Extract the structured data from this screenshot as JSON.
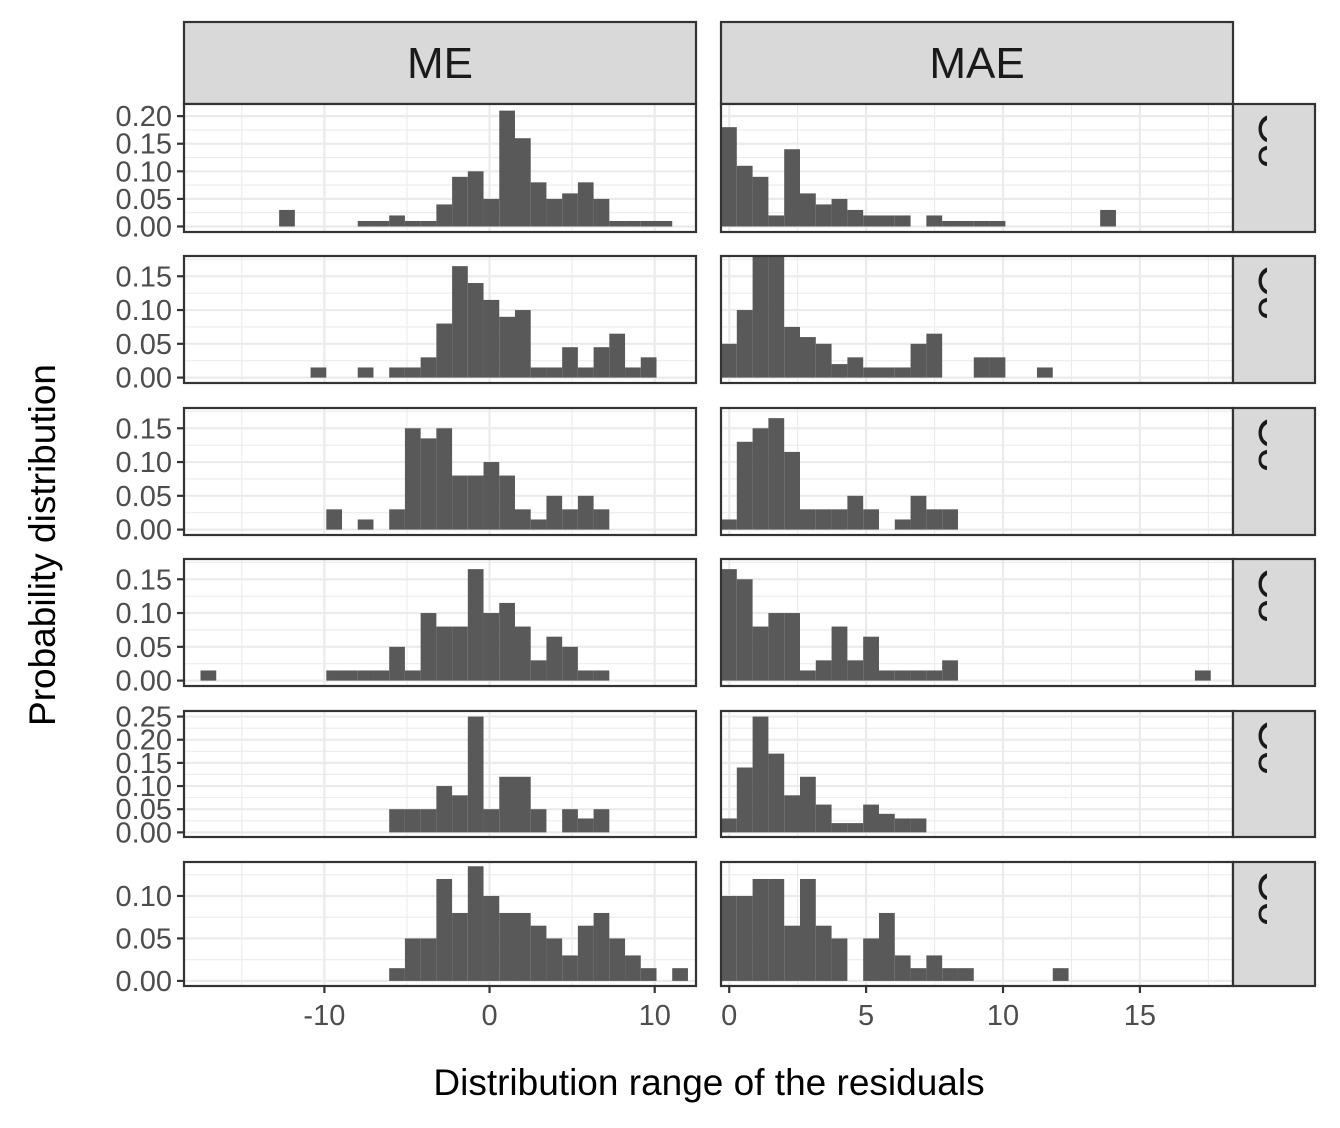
{
  "chart_data": {
    "type": "histogram-facet-grid",
    "xlabel": "Distribution range of the residuals",
    "ylabel": "Probability distribution",
    "columns": [
      {
        "label": "ME",
        "xlim": [
          -18.5,
          12.5
        ],
        "x_ticks": [
          -10,
          0,
          10
        ],
        "x_tick_labels": [
          "-10",
          "0",
          "10"
        ]
      },
      {
        "label": "MAE",
        "xlim": [
          -0.3,
          18.4
        ],
        "x_ticks": [
          0,
          5,
          10,
          15
        ],
        "x_tick_labels": [
          "0",
          "5",
          "10",
          "15"
        ]
      }
    ],
    "rows": [
      {
        "label": "Collec",
        "ylim": [
          -0.01,
          0.222
        ],
        "y_ticks": [
          0,
          0.05,
          0.1,
          0.15,
          0.2
        ],
        "y_tick_labels": [
          "0.00",
          "0.05",
          "0.10",
          "0.15",
          "0.20"
        ],
        "panels": [
          {
            "x0": -17.5,
            "width": 0.952,
            "values": [
              0,
              0,
              0,
              0,
              0,
              0.03,
              0,
              0,
              0,
              0,
              0.01,
              0.01,
              0.02,
              0.01,
              0.01,
              0.04,
              0.09,
              0.1,
              0.05,
              0.21,
              0.16,
              0.08,
              0.05,
              0.06,
              0.08,
              0.05,
              0.01,
              0.01,
              0.01,
              0.01
            ]
          },
          {
            "x0": -0.3,
            "width": 0.577,
            "values": [
              0.18,
              0.11,
              0.09,
              0.02,
              0.14,
              0.06,
              0.04,
              0.05,
              0.03,
              0.02,
              0.02,
              0.02,
              0,
              0.02,
              0.01,
              0.01,
              0.01,
              0.01,
              0,
              0,
              0,
              0,
              0,
              0,
              0.03
            ]
          }
        ]
      },
      {
        "label": "Collec",
        "ylim": [
          -0.008,
          0.18
        ],
        "y_ticks": [
          0,
          0.05,
          0.1,
          0.15
        ],
        "y_tick_labels": [
          "0.00",
          "0.05",
          "0.10",
          "0.15"
        ],
        "panels": [
          {
            "x0": -17.5,
            "width": 0.952,
            "values": [
              0,
              0,
              0,
              0,
              0,
              0,
              0,
              0.015,
              0,
              0,
              0.015,
              0,
              0.015,
              0.015,
              0.03,
              0.08,
              0.165,
              0.14,
              0.115,
              0.09,
              0.1,
              0.015,
              0.015,
              0.045,
              0.015,
              0.045,
              0.065,
              0.015,
              0.03
            ]
          },
          {
            "x0": -0.3,
            "width": 0.577,
            "values": [
              0.05,
              0.1,
              0.18,
              0.18,
              0.075,
              0.06,
              0.05,
              0.02,
              0.03,
              0.015,
              0.015,
              0.015,
              0.05,
              0.065,
              0,
              0,
              0.03,
              0.03,
              0,
              0,
              0.015
            ]
          }
        ]
      },
      {
        "label": "Collec",
        "ylim": [
          -0.008,
          0.18
        ],
        "y_ticks": [
          0,
          0.05,
          0.1,
          0.15
        ],
        "y_tick_labels": [
          "0.00",
          "0.05",
          "0.10",
          "0.15"
        ],
        "panels": [
          {
            "x0": -17.5,
            "width": 0.952,
            "values": [
              0,
              0,
              0,
              0,
              0,
              0,
              0,
              0,
              0.03,
              0,
              0.015,
              0,
              0.03,
              0.15,
              0.135,
              0.15,
              0.08,
              0.08,
              0.1,
              0.08,
              0.03,
              0.015,
              0.05,
              0.03,
              0.05,
              0.03
            ]
          },
          {
            "x0": -0.3,
            "width": 0.577,
            "values": [
              0.015,
              0.13,
              0.15,
              0.165,
              0.115,
              0.03,
              0.03,
              0.03,
              0.05,
              0.03,
              0,
              0.015,
              0.05,
              0.03,
              0.03
            ]
          }
        ]
      },
      {
        "label": "Collec",
        "ylim": [
          -0.008,
          0.18
        ],
        "y_ticks": [
          0,
          0.05,
          0.1,
          0.15
        ],
        "y_tick_labels": [
          "0.00",
          "0.05",
          "0.10",
          "0.15"
        ],
        "panels": [
          {
            "x0": -17.5,
            "width": 0.952,
            "values": [
              0.015,
              0,
              0,
              0,
              0,
              0,
              0,
              0,
              0.015,
              0.015,
              0.015,
              0.015,
              0.05,
              0.015,
              0.1,
              0.08,
              0.08,
              0.165,
              0.1,
              0.115,
              0.08,
              0.03,
              0.065,
              0.05,
              0.015,
              0.015
            ]
          },
          {
            "x0": -0.3,
            "width": 0.577,
            "values": [
              0.165,
              0.15,
              0.08,
              0.1,
              0.1,
              0.015,
              0.03,
              0.08,
              0.03,
              0.065,
              0.015,
              0.015,
              0.015,
              0.015,
              0.03,
              0,
              0,
              0,
              0,
              0,
              0,
              0,
              0,
              0,
              0,
              0,
              0,
              0,
              0,
              0,
              0.015
            ]
          }
        ]
      },
      {
        "label": "Collec",
        "ylim": [
          -0.01,
          0.262
        ],
        "y_ticks": [
          0,
          0.05,
          0.1,
          0.15,
          0.2,
          0.25
        ],
        "y_tick_labels": [
          "0.00",
          "0.05",
          "0.10",
          "0.15",
          "0.20",
          "0.25"
        ],
        "panels": [
          {
            "x0": -17.5,
            "width": 0.952,
            "values": [
              0,
              0,
              0,
              0,
              0,
              0,
              0,
              0,
              0,
              0,
              0,
              0,
              0.05,
              0.05,
              0.05,
              0.1,
              0.08,
              0.25,
              0.05,
              0.12,
              0.12,
              0.05,
              0,
              0.05,
              0.03,
              0.05
            ]
          },
          {
            "x0": -0.3,
            "width": 0.577,
            "values": [
              0.03,
              0.14,
              0.25,
              0.17,
              0.08,
              0.12,
              0.06,
              0.02,
              0.02,
              0.06,
              0.04,
              0.03,
              0.03
            ]
          }
        ]
      },
      {
        "label": "Collec",
        "ylim": [
          -0.006,
          0.14
        ],
        "y_ticks": [
          0,
          0.05,
          0.1
        ],
        "y_tick_labels": [
          "0.00",
          "0.05",
          "0.10"
        ],
        "panels": [
          {
            "x0": -17.5,
            "width": 0.952,
            "values": [
              0,
              0,
              0,
              0,
              0,
              0,
              0,
              0,
              0,
              0,
              0,
              0,
              0.015,
              0.05,
              0.05,
              0.12,
              0.08,
              0.135,
              0.1,
              0.08,
              0.08,
              0.065,
              0.05,
              0.03,
              0.065,
              0.08,
              0.05,
              0.03,
              0.015,
              0,
              0.015
            ]
          },
          {
            "x0": -0.3,
            "width": 0.577,
            "values": [
              0.1,
              0.1,
              0.12,
              0.12,
              0.065,
              0.12,
              0.065,
              0.05,
              0,
              0.05,
              0.08,
              0.03,
              0.015,
              0.03,
              0.015,
              0.015,
              0,
              0,
              0,
              0,
              0,
              0.015
            ]
          }
        ]
      }
    ]
  }
}
